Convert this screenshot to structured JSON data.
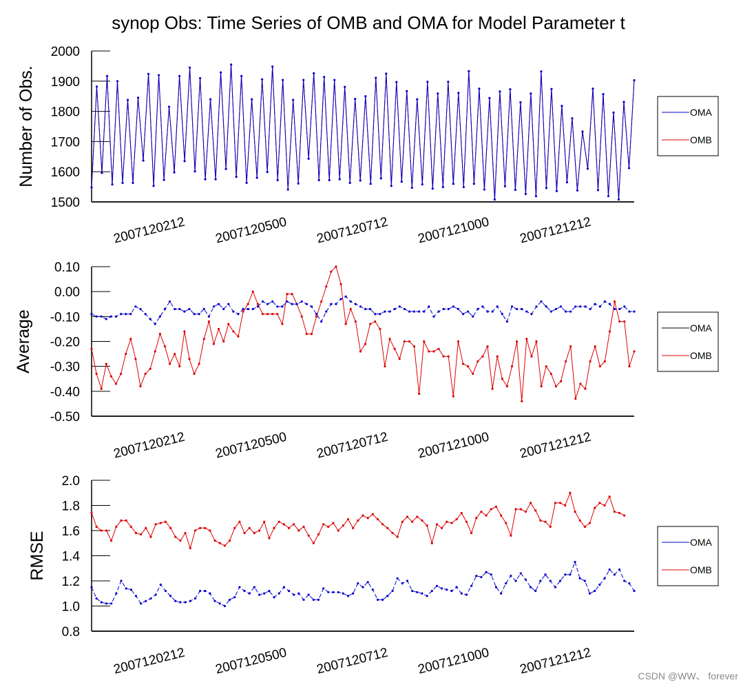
{
  "watermark": "CSDN @WW、 forever",
  "chart_data": [
    {
      "type": "line",
      "title": "synop Obs: Time Series of OMB and OMA for Model Parameter t",
      "xlabel": "",
      "ylabel": "Number of Obs.",
      "ylim": [
        1500,
        2000
      ],
      "yticks": [
        "1500",
        "1600",
        "1700",
        "1800",
        "1900",
        "2000"
      ],
      "xtick_labels": [
        "2007120212",
        "2007120500",
        "2007120712",
        "2007121000",
        "2007121212"
      ],
      "legend": [
        "OMA",
        "OMB"
      ],
      "legend_placement": "right",
      "series": [
        {
          "name": "OMA",
          "color": "#0000cc",
          "dash": "solid",
          "marker": true,
          "values": [
            1548,
            1882,
            1596,
            1917,
            1558,
            1900,
            1563,
            1838,
            1563,
            1845,
            1637,
            1924,
            1553,
            1920,
            1573,
            1815,
            1598,
            1917,
            1635,
            1945,
            1601,
            1910,
            1575,
            1840,
            1575,
            1929,
            1609,
            1955,
            1583,
            1917,
            1563,
            1840,
            1580,
            1906,
            1599,
            1948,
            1572,
            1904,
            1541,
            1838,
            1561,
            1904,
            1643,
            1926,
            1572,
            1914,
            1572,
            1904,
            1575,
            1881,
            1563,
            1841,
            1571,
            1850,
            1560,
            1911,
            1578,
            1925,
            1553,
            1897,
            1567,
            1867,
            1547,
            1840,
            1558,
            1898,
            1544,
            1859,
            1549,
            1898,
            1560,
            1861,
            1549,
            1933,
            1560,
            1875,
            1541,
            1844,
            1508,
            1866,
            1552,
            1873,
            1540,
            1830,
            1526,
            1859,
            1519,
            1932,
            1546,
            1874,
            1536,
            1818,
            1565,
            1777,
            1538,
            1733,
            1610,
            1875,
            1539,
            1857,
            1519,
            1796,
            1508,
            1831,
            1612,
            1903
          ]
        },
        {
          "name": "OMB",
          "color": "#dd0000",
          "dash": "solid",
          "marker": false,
          "values": [
            1548,
            1882,
            1596,
            1917,
            1558,
            1900,
            1563,
            1838,
            1563,
            1845,
            1637,
            1924,
            1553,
            1920,
            1573,
            1815,
            1598,
            1917,
            1635,
            1945,
            1601,
            1910,
            1575,
            1840,
            1575,
            1929,
            1609,
            1955,
            1583,
            1917,
            1563,
            1840,
            1580,
            1906,
            1599,
            1948,
            1572,
            1904,
            1541,
            1838,
            1561,
            1904,
            1643,
            1926,
            1572,
            1914,
            1572,
            1904,
            1575,
            1881,
            1563,
            1841,
            1571,
            1850,
            1560,
            1911,
            1578,
            1925,
            1553,
            1897,
            1567,
            1867,
            1547,
            1840,
            1558,
            1898,
            1544,
            1859,
            1549,
            1898,
            1560,
            1861,
            1549,
            1933,
            1560,
            1875,
            1541,
            1844,
            1508,
            1866,
            1552,
            1873,
            1540,
            1830,
            1526,
            1859,
            1519,
            1932,
            1546,
            1874,
            1536,
            1818,
            1565,
            1777,
            1538,
            1733,
            1610,
            1875,
            1539,
            1857,
            1519,
            1796,
            1508,
            1831,
            1612,
            1903
          ]
        }
      ]
    },
    {
      "type": "line",
      "title": "",
      "xlabel": "",
      "ylabel": "Average",
      "ylim": [
        -0.5,
        0.1
      ],
      "yticks": [
        "-0.50",
        "-0.40",
        "-0.30",
        "-0.20",
        "-0.10",
        "0.00",
        "0.10"
      ],
      "xtick_labels": [
        "2007120212",
        "2007120500",
        "2007120712",
        "2007121000",
        "2007121212"
      ],
      "legend": [
        "OMA",
        "OMB"
      ],
      "legend_placement": "right",
      "series": [
        {
          "name": "OMA",
          "color": "#0000cc",
          "dash": "dashed",
          "marker": true,
          "values": [
            -0.09,
            -0.1,
            -0.1,
            -0.11,
            -0.1,
            -0.1,
            -0.09,
            -0.09,
            -0.09,
            -0.06,
            -0.07,
            -0.09,
            -0.11,
            -0.13,
            -0.1,
            -0.07,
            -0.04,
            -0.07,
            -0.07,
            -0.08,
            -0.07,
            -0.09,
            -0.09,
            -0.07,
            -0.1,
            -0.06,
            -0.05,
            -0.07,
            -0.05,
            -0.08,
            -0.09,
            -0.07,
            -0.07,
            -0.07,
            -0.06,
            -0.04,
            -0.05,
            -0.04,
            -0.06,
            -0.06,
            -0.04,
            -0.05,
            -0.05,
            -0.04,
            -0.05,
            -0.06,
            -0.09,
            -0.12,
            -0.08,
            -0.05,
            -0.05,
            -0.03,
            -0.02,
            -0.04,
            -0.05,
            -0.06,
            -0.07,
            -0.07,
            -0.09,
            -0.09,
            -0.08,
            -0.08,
            -0.07,
            -0.06,
            -0.07,
            -0.08,
            -0.08,
            -0.08,
            -0.08,
            -0.06,
            -0.1,
            -0.08,
            -0.07,
            -0.07,
            -0.06,
            -0.07,
            -0.09,
            -0.08,
            -0.1,
            -0.07,
            -0.06,
            -0.08,
            -0.08,
            -0.06,
            -0.09,
            -0.12,
            -0.06,
            -0.07,
            -0.07,
            -0.08,
            -0.09,
            -0.06,
            -0.04,
            -0.06,
            -0.08,
            -0.07,
            -0.06,
            -0.08,
            -0.08,
            -0.06,
            -0.06,
            -0.06,
            -0.07,
            -0.05,
            -0.06,
            -0.04,
            -0.05,
            -0.07,
            -0.07,
            -0.06,
            -0.08,
            -0.08
          ]
        },
        {
          "name": "OMB",
          "color": "#dd0000",
          "dash": "solid",
          "marker": true,
          "values": [
            -0.23,
            -0.33,
            -0.39,
            -0.29,
            -0.34,
            -0.37,
            -0.33,
            -0.25,
            -0.19,
            -0.27,
            -0.38,
            -0.33,
            -0.31,
            -0.24,
            -0.17,
            -0.22,
            -0.29,
            -0.25,
            -0.3,
            -0.16,
            -0.27,
            -0.33,
            -0.29,
            -0.19,
            -0.12,
            -0.21,
            -0.15,
            -0.2,
            -0.13,
            -0.16,
            -0.18,
            -0.08,
            -0.05,
            0.0,
            -0.05,
            -0.09,
            -0.09,
            -0.09,
            -0.09,
            -0.13,
            -0.01,
            -0.01,
            -0.05,
            -0.1,
            -0.17,
            -0.17,
            -0.1,
            -0.04,
            0.02,
            0.08,
            0.1,
            0.03,
            -0.13,
            -0.07,
            -0.12,
            -0.24,
            -0.21,
            -0.13,
            -0.12,
            -0.15,
            -0.3,
            -0.19,
            -0.23,
            -0.27,
            -0.2,
            -0.2,
            -0.22,
            -0.41,
            -0.2,
            -0.24,
            -0.24,
            -0.23,
            -0.26,
            -0.26,
            -0.42,
            -0.2,
            -0.29,
            -0.3,
            -0.33,
            -0.28,
            -0.26,
            -0.22,
            -0.39,
            -0.26,
            -0.35,
            -0.38,
            -0.3,
            -0.2,
            -0.44,
            -0.19,
            -0.26,
            -0.2,
            -0.38,
            -0.3,
            -0.33,
            -0.38,
            -0.36,
            -0.28,
            -0.22,
            -0.43,
            -0.37,
            -0.39,
            -0.28,
            -0.22,
            -0.3,
            -0.28,
            -0.16,
            -0.04,
            -0.12,
            -0.12,
            -0.3,
            -0.24
          ]
        }
      ]
    },
    {
      "type": "line",
      "title": "",
      "xlabel": "",
      "ylabel": "RMSE",
      "ylim": [
        0.8,
        2.0
      ],
      "yticks": [
        "0.8",
        "1.0",
        "1.2",
        "1.4",
        "1.6",
        "1.8",
        "2.0"
      ],
      "xtick_labels": [
        "2007120212",
        "2007120500",
        "2007120712",
        "2007121000",
        "2007121212"
      ],
      "legend": [
        "OMA",
        "OMB"
      ],
      "legend_placement": "right",
      "series": [
        {
          "name": "OMA",
          "color": "#0000cc",
          "dash": "dashed",
          "marker": true,
          "values": [
            1.15,
            1.06,
            1.03,
            1.02,
            1.02,
            1.1,
            1.2,
            1.14,
            1.13,
            1.08,
            1.02,
            1.04,
            1.06,
            1.09,
            1.17,
            1.12,
            1.08,
            1.04,
            1.03,
            1.03,
            1.04,
            1.06,
            1.12,
            1.12,
            1.1,
            1.04,
            1.02,
            1.0,
            1.05,
            1.07,
            1.15,
            1.12,
            1.1,
            1.15,
            1.09,
            1.1,
            1.12,
            1.07,
            1.1,
            1.15,
            1.12,
            1.09,
            1.1,
            1.05,
            1.09,
            1.05,
            1.05,
            1.14,
            1.11,
            1.11,
            1.11,
            1.1,
            1.08,
            1.1,
            1.18,
            1.15,
            1.19,
            1.13,
            1.05,
            1.05,
            1.08,
            1.12,
            1.22,
            1.18,
            1.2,
            1.12,
            1.11,
            1.1,
            1.08,
            1.12,
            1.16,
            1.14,
            1.13,
            1.12,
            1.15,
            1.1,
            1.09,
            1.16,
            1.24,
            1.23,
            1.27,
            1.25,
            1.15,
            1.1,
            1.18,
            1.24,
            1.2,
            1.26,
            1.21,
            1.15,
            1.12,
            1.2,
            1.25,
            1.2,
            1.15,
            1.2,
            1.25,
            1.25,
            1.35,
            1.22,
            1.2,
            1.1,
            1.12,
            1.17,
            1.22,
            1.29,
            1.25,
            1.29,
            1.2,
            1.18,
            1.12
          ]
        },
        {
          "name": "OMB",
          "color": "#dd0000",
          "dash": "solid",
          "marker": true,
          "values": [
            1.74,
            1.63,
            1.6,
            1.6,
            1.52,
            1.63,
            1.68,
            1.68,
            1.63,
            1.58,
            1.57,
            1.62,
            1.55,
            1.65,
            1.66,
            1.67,
            1.62,
            1.55,
            1.52,
            1.58,
            1.46,
            1.6,
            1.62,
            1.62,
            1.6,
            1.52,
            1.5,
            1.48,
            1.52,
            1.62,
            1.67,
            1.58,
            1.62,
            1.58,
            1.6,
            1.67,
            1.54,
            1.62,
            1.67,
            1.65,
            1.62,
            1.65,
            1.6,
            1.63,
            1.56,
            1.5,
            1.57,
            1.65,
            1.63,
            1.66,
            1.6,
            1.64,
            1.69,
            1.62,
            1.68,
            1.72,
            1.7,
            1.73,
            1.69,
            1.65,
            1.62,
            1.58,
            1.55,
            1.67,
            1.71,
            1.67,
            1.71,
            1.68,
            1.64,
            1.5,
            1.65,
            1.62,
            1.67,
            1.66,
            1.69,
            1.74,
            1.67,
            1.58,
            1.7,
            1.75,
            1.72,
            1.77,
            1.79,
            1.72,
            1.66,
            1.56,
            1.77,
            1.77,
            1.75,
            1.82,
            1.76,
            1.68,
            1.67,
            1.63,
            1.82,
            1.82,
            1.8,
            1.9,
            1.75,
            1.68,
            1.63,
            1.66,
            1.78,
            1.82,
            1.8,
            1.87,
            1.75,
            1.74,
            1.72
          ]
        }
      ]
    }
  ]
}
